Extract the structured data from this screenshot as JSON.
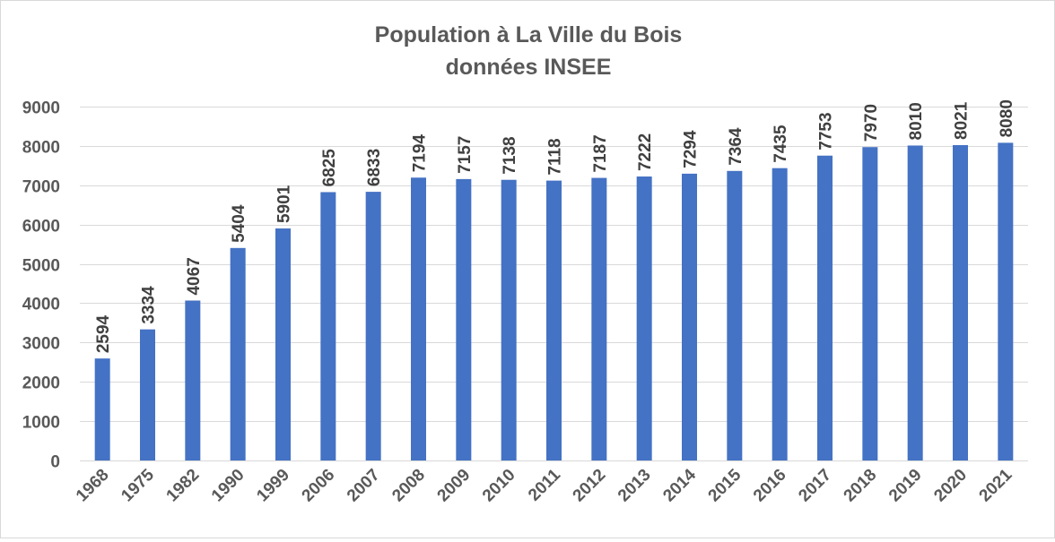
{
  "chart_data": {
    "type": "bar",
    "title": "Population à La Ville du Bois",
    "subtitle": "données INSEE",
    "xlabel": "",
    "ylabel": "",
    "categories": [
      "1968",
      "1975",
      "1982",
      "1990",
      "1999",
      "2006",
      "2007",
      "2008",
      "2009",
      "2010",
      "2011",
      "2012",
      "2013",
      "2014",
      "2015",
      "2016",
      "2017",
      "2018",
      "2019",
      "2020",
      "2021"
    ],
    "series": [
      {
        "values": [
          2594,
          3334,
          4067,
          5404,
          5901,
          6825,
          6833,
          7194,
          7157,
          7138,
          7118,
          7187,
          7222,
          7294,
          7364,
          7435,
          7753,
          7970,
          8010,
          8021,
          8080
        ]
      }
    ],
    "ylim": [
      0,
      9000
    ],
    "yticks": [
      0,
      1000,
      2000,
      3000,
      4000,
      5000,
      6000,
      7000,
      8000,
      9000
    ],
    "grid": true,
    "legend": "none",
    "data_labels": true,
    "colors": {
      "bar": "#4472C4"
    }
  }
}
